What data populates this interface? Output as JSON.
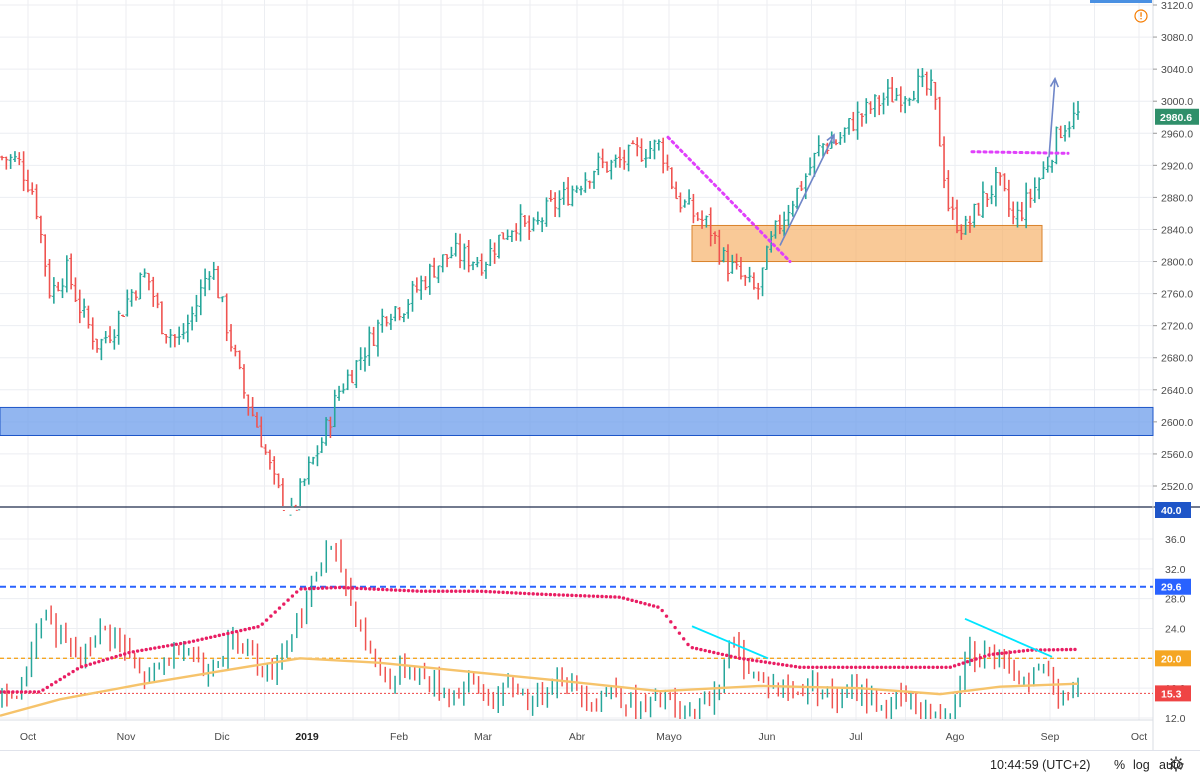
{
  "chart_data": [
    {
      "type": "ohlc",
      "ylim": [
        2495,
        3125
      ],
      "yticks": [
        "2520.0",
        "2560.0",
        "2600.0",
        "2640.0",
        "2680.0",
        "2720.0",
        "2760.0",
        "2800.0",
        "2840.0",
        "2880.0",
        "2920.0",
        "2960.0",
        "3000.0",
        "3040.0",
        "3080.0",
        "3120.0"
      ],
      "last_price": "2980.6",
      "grid": true,
      "weekly_closes": [
        2930,
        2925,
        2885,
        2760,
        2790,
        2735,
        2695,
        2720,
        2760,
        2785,
        2720,
        2700,
        2740,
        2800,
        2720,
        2640,
        2590,
        2520,
        2480,
        2535,
        2580,
        2640,
        2670,
        2705,
        2740,
        2745,
        2770,
        2795,
        2810,
        2805,
        2800,
        2830,
        2850,
        2835,
        2865,
        2880,
        2900,
        2920,
        2920,
        2930,
        2940,
        2945,
        2880,
        2860,
        2845,
        2800,
        2780,
        2760,
        2830,
        2870,
        2905,
        2945,
        2950,
        2975,
        2990,
        3005,
        3010,
        3020,
        3010,
        2860,
        2840,
        2875,
        2900,
        2850,
        2880,
        2920,
        2970,
        2982
      ],
      "zones": [
        {
          "name": "support-zone",
          "y_range": [
            2583,
            2618
          ],
          "color": "#6d9eeb"
        },
        {
          "name": "consolidation-zone",
          "y_range": [
            2800,
            2845
          ],
          "color": "#f6b26b"
        }
      ]
    },
    {
      "type": "line",
      "ylim": [
        10.5,
        40.5
      ],
      "yticks": [
        "12.0",
        "16.0",
        "20.0",
        "24.0",
        "28.0",
        "32.0",
        "36.0"
      ],
      "badges": [
        {
          "value": "40.0",
          "color": "#1e55c8"
        },
        {
          "value": "29.6",
          "color": "#2962ff"
        },
        {
          "value": "20.0",
          "color": "#f5a623"
        },
        {
          "value": "15.3",
          "color": "#ef4444"
        }
      ],
      "series": [
        {
          "values": [
            14.5,
            14.8,
            17,
            24,
            26,
            23,
            21,
            20,
            22,
            24,
            23,
            21,
            18,
            17,
            19,
            20,
            22,
            21,
            18,
            20,
            21,
            23,
            22,
            19,
            18,
            21,
            24,
            27,
            31,
            35,
            33,
            28,
            24,
            20,
            18,
            17,
            19,
            18,
            17,
            16,
            15,
            16,
            17,
            15,
            14,
            16,
            16,
            14,
            15,
            17,
            18,
            16,
            15,
            14,
            16,
            15,
            14,
            13,
            14,
            15,
            13,
            12,
            13,
            14,
            17,
            22,
            20,
            18,
            17,
            16,
            16,
            15,
            17,
            16,
            15,
            14,
            16,
            15,
            14,
            13,
            15,
            14,
            13,
            12,
            12,
            14,
            22,
            20,
            21,
            19,
            18,
            17,
            18,
            19,
            16,
            15,
            15
          ]
        }
      ]
    }
  ],
  "x_labels": [
    "Oct",
    "Nov",
    "Dic",
    "2019",
    "Feb",
    "Mar",
    "Abr",
    "Mayo",
    "Jun",
    "Jul",
    "Ago",
    "Sep",
    "Oct"
  ],
  "colors": {
    "up": "#26a69a",
    "down": "#ef5350",
    "dotted_ma": "#e91e63",
    "smooth_ma": "#f6c36b",
    "cyan": "#00e5ff",
    "magenta": "#e040fb",
    "arrow": "#6f86c8",
    "grid": "#eceef2"
  },
  "bottom_bar": {
    "time": "10:44:59 (UTC+2)",
    "percent": "%",
    "log": "log",
    "auto": "auto"
  },
  "icons": {
    "settings": "gear-icon",
    "alert": "alert-icon"
  }
}
